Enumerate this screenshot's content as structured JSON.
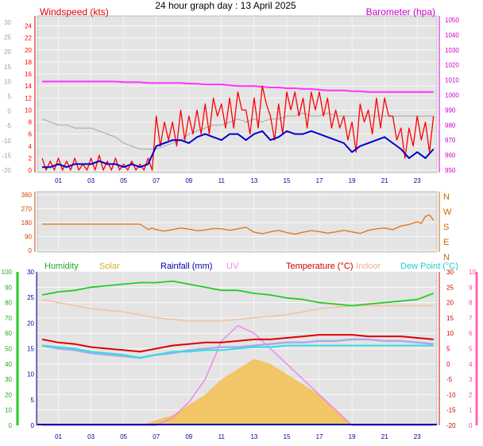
{
  "title": "24 hour graph day : 13 April 2025",
  "colors": {
    "panel_bg": "#e4e4e4",
    "grid": "#ffffff",
    "windspeed_title": "#e00000",
    "windspeed_line": "#ff0000",
    "windgust_line": "#0000cc",
    "barometer": "#ff33ff",
    "baro_gray": "#b0b0b0",
    "direction": "#e07a20",
    "humidity": "#22cc22",
    "solar": "#f5c050",
    "rainfall": "#0000aa",
    "uv": "#ee88ee",
    "temperature": "#e00000",
    "indoor": "#f5c0a0",
    "dew_point": "#33dddd",
    "feels_like": "#aaaaee",
    "hour_label": "#0000aa",
    "axis_left1": "#ff0000",
    "axis_left1_gray": "#a0a0a0",
    "axis_right1": "#cc00cc",
    "axis_dir_left": "#cc4400",
    "axis_dir_right": "#cc6600",
    "axis_hum": "#22aa22",
    "axis_rain": "#0000aa",
    "axis_temp": "#cc0000",
    "axis_uv": "#ff44aa"
  },
  "x_hours": [
    "01",
    "03",
    "05",
    "07",
    "09",
    "11",
    "13",
    "15",
    "17",
    "19",
    "21",
    "23"
  ],
  "chart_data": [
    {
      "type": "line",
      "panel": "wind",
      "title_left": "Windspeed (kts)",
      "title_right": "Barometer (hpa)",
      "left_ticks_red": [
        "24",
        "22",
        "20",
        "18",
        "16",
        "14",
        "12",
        "10",
        "8",
        "6",
        "4",
        "2",
        "0"
      ],
      "left_ticks_gray": [
        "30",
        "25",
        "20",
        "15",
        "10",
        "5",
        "0",
        "-5",
        "-10",
        "-15",
        "-20"
      ],
      "right_ticks": [
        "1050",
        "1040",
        "1030",
        "1020",
        "1010",
        "1000",
        "990",
        "980",
        "970",
        "960",
        "950"
      ],
      "ylim_left": [
        0,
        25
      ],
      "ylim_right": [
        950,
        1050
      ],
      "x_hours": [
        0,
        0.5,
        1,
        1.5,
        2,
        2.5,
        3,
        3.5,
        4,
        4.5,
        5,
        5.5,
        6,
        6.5,
        7,
        7.5,
        8,
        8.5,
        9,
        9.5,
        10,
        10.5,
        11,
        11.5,
        12,
        12.5,
        13,
        13.5,
        14,
        14.5,
        15,
        15.5,
        16,
        16.5,
        17,
        17.5,
        18,
        18.5,
        19,
        19.5,
        20,
        20.5,
        21,
        21.5,
        22,
        22.5,
        23,
        23.5,
        24
      ],
      "series": [
        {
          "key": "windspeed",
          "values": [
            2,
            1.5,
            2,
            1.5,
            2,
            1,
            2,
            2.5,
            1.5,
            2,
            1,
            1.5,
            1,
            2,
            9,
            8,
            8,
            10,
            9,
            10,
            11,
            12,
            11,
            12,
            13,
            10,
            12,
            14,
            9,
            11,
            13,
            13,
            12,
            13,
            13,
            12,
            10,
            9,
            8,
            11,
            10,
            12,
            12,
            9,
            7,
            7,
            9,
            8,
            9
          ]
        },
        {
          "key": "windgust",
          "values": [
            0.5,
            0.5,
            1,
            0.5,
            1,
            1,
            1,
            1.5,
            1,
            1,
            0.5,
            1,
            0.5,
            1,
            4,
            4.5,
            5,
            5,
            4.5,
            5.5,
            6,
            5.5,
            5,
            6,
            6,
            5,
            6,
            6.5,
            5,
            5.5,
            6.5,
            6,
            6,
            6.5,
            6,
            5.5,
            5,
            4.5,
            3,
            4,
            4.5,
            5,
            5.5,
            4.5,
            3.5,
            2,
            3,
            2,
            3.5
          ]
        },
        {
          "key": "barometer",
          "values": [
            1009,
            1009,
            1009,
            1009,
            1009,
            1009,
            1009,
            1009,
            1009,
            1009,
            1008.5,
            1008.5,
            1008.5,
            1008,
            1008,
            1008,
            1008,
            1008,
            1007.5,
            1007.5,
            1007,
            1007,
            1007,
            1006.5,
            1006,
            1006,
            1006,
            1005.5,
            1005,
            1005,
            1004.5,
            1004.5,
            1004,
            1004,
            1003.5,
            1003,
            1003,
            1003,
            1002.5,
            1002.5,
            1002,
            1002,
            1002,
            1002,
            1002,
            1002,
            1002,
            1002,
            1002
          ]
        },
        {
          "key": "gray_trace",
          "values": [
            8.5,
            8,
            7.5,
            7.5,
            7,
            7,
            7,
            6.5,
            6,
            5.5,
            4.5,
            4,
            3.5,
            3.5,
            3.5,
            4,
            4.5,
            5,
            6,
            6.5,
            7,
            7.5,
            7.5,
            8,
            8.5,
            8,
            8.5,
            8,
            8.5,
            8.5,
            9,
            9,
            9.5,
            9,
            9,
            9.5,
            9,
            9,
            9,
            9,
            9,
            9,
            9,
            9,
            9,
            9,
            9,
            9,
            9
          ]
        }
      ]
    },
    {
      "type": "line",
      "panel": "direction",
      "left_ticks": [
        "360",
        "270",
        "180",
        "90",
        "0"
      ],
      "right_labels": [
        "N",
        "W",
        "S",
        "E",
        "N"
      ],
      "ylim": [
        0,
        360
      ],
      "x_hours": [
        0,
        1,
        2,
        3,
        4,
        5,
        6,
        6.5,
        7,
        8,
        9,
        10,
        11,
        12,
        13,
        14,
        15,
        16,
        17,
        18,
        19,
        20,
        21,
        22,
        23,
        23.5,
        24
      ],
      "values": [
        170,
        170,
        170,
        170,
        170,
        170,
        170,
        135,
        135,
        135,
        138,
        132,
        140,
        140,
        118,
        120,
        115,
        118,
        122,
        120,
        120,
        130,
        145,
        158,
        185,
        220,
        195
      ]
    },
    {
      "type": "line",
      "panel": "temperature",
      "labels": {
        "humidity": "Humidity",
        "solar": "Solar",
        "rainfall": "Rainfall (mm)",
        "uv": "UV",
        "temperature": "Temperature (°C)",
        "indoor": "Indoor",
        "dew_point": "Dew Point (°C)"
      },
      "left_ticks_hum": [
        "100",
        "90",
        "80",
        "70",
        "60",
        "50",
        "40",
        "30",
        "20",
        "10",
        "0"
      ],
      "left_ticks_rain": [
        "30",
        "25",
        "20",
        "15",
        "10",
        "5",
        "0"
      ],
      "right_ticks_temp": [
        "30",
        "25",
        "20",
        "15",
        "10",
        "5",
        "0",
        "-5",
        "-10",
        "-15",
        "-20"
      ],
      "right_ticks_uv": [
        "10",
        "9",
        "8",
        "7",
        "6",
        "5",
        "4",
        "3",
        "2",
        "1",
        "0"
      ],
      "ylim_temp": [
        -20,
        30
      ],
      "ylim_hum": [
        0,
        100
      ],
      "x_hours": [
        0,
        1,
        2,
        3,
        4,
        5,
        6,
        7,
        8,
        9,
        10,
        11,
        12,
        13,
        14,
        15,
        16,
        17,
        18,
        19,
        20,
        21,
        22,
        23,
        24
      ],
      "series": [
        {
          "key": "humidity",
          "values": [
            85,
            87,
            88,
            90,
            91,
            92,
            93,
            93,
            94,
            92,
            90,
            88,
            88,
            86,
            85,
            83,
            82,
            80,
            79,
            78,
            79,
            80,
            81,
            82,
            86
          ]
        },
        {
          "key": "indoor",
          "values": [
            21,
            20,
            19,
            18,
            17.5,
            17,
            16,
            15,
            14.5,
            14,
            14,
            14,
            14.5,
            15,
            15.5,
            16,
            17,
            18,
            18.5,
            19,
            19,
            19,
            19,
            19,
            19
          ]
        },
        {
          "key": "temperature",
          "values": [
            8,
            7,
            6.5,
            5.5,
            5,
            4.5,
            4,
            5,
            6,
            6.5,
            7,
            7,
            7.5,
            8,
            8,
            8.5,
            9,
            9.5,
            9.5,
            9.5,
            9,
            9,
            9,
            8.5,
            8
          ]
        },
        {
          "key": "feels_like",
          "values": [
            6,
            5,
            4.5,
            3.5,
            3,
            2.5,
            2,
            3,
            3.5,
            4.5,
            5,
            5.5,
            5.5,
            6,
            6.5,
            7,
            7,
            7.5,
            7.5,
            8,
            8,
            7.5,
            7.5,
            7,
            6.5
          ]
        },
        {
          "key": "dew_point",
          "values": [
            6,
            5.5,
            5,
            4,
            3.5,
            3,
            2,
            3,
            4,
            4,
            4.5,
            4.5,
            5,
            5.5,
            5.5,
            6,
            6,
            6,
            6,
            6,
            6,
            6,
            6,
            6,
            6
          ]
        },
        {
          "key": "uv",
          "values": [
            0,
            0,
            0,
            0,
            0,
            0,
            0,
            0,
            0.5,
            1.5,
            3,
            5.5,
            6.5,
            6,
            5,
            4,
            3,
            2,
            1,
            0,
            0,
            0,
            0,
            0,
            0
          ]
        },
        {
          "key": "solar",
          "values": [
            0,
            0,
            0,
            0,
            0,
            0,
            0,
            1,
            2,
            4,
            6,
            9,
            11,
            13,
            12,
            10,
            8,
            6,
            3,
            0,
            0,
            0,
            0,
            0,
            0
          ]
        }
      ]
    }
  ]
}
